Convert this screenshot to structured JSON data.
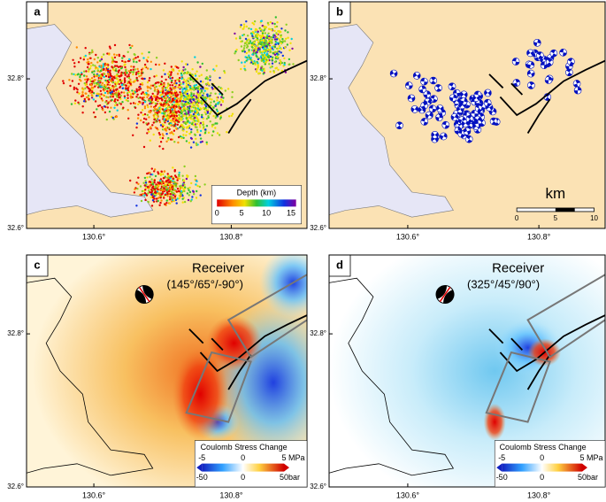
{
  "panels": [
    {
      "label": "a",
      "lon_ticks": [
        "130.6°",
        "130.8°"
      ],
      "lat_ticks": [
        "32.8°",
        "32.6°"
      ],
      "colorbar": {
        "title": "Depth (km)",
        "ticks": [
          0,
          5,
          10,
          15
        ]
      }
    },
    {
      "label": "b",
      "lon_ticks": [
        "130.6°",
        "130.8°"
      ],
      "lat_ticks": [
        "32.8°",
        "32.6°"
      ],
      "scale": {
        "unit": "km",
        "ticks": [
          0,
          5,
          10
        ]
      }
    },
    {
      "label": "c",
      "lon_ticks": [
        "130.6°",
        "130.8°"
      ],
      "lat_ticks": [
        "32.8°",
        "32.6°"
      ],
      "receiver": {
        "title": "Receiver",
        "angles": "(145°/65°/-90°)"
      },
      "colorbar": {
        "title": "Coulomb Stress Change",
        "ticks": [
          -5,
          0,
          5
        ],
        "unit": "MPa",
        "ticks2": [
          -50,
          0,
          50
        ],
        "unit2": "bar"
      }
    },
    {
      "label": "d",
      "lon_ticks": [
        "130.6°",
        "130.8°"
      ],
      "lat_ticks": [
        "32.8°",
        "32.6°"
      ],
      "receiver": {
        "title": "Receiver",
        "angles": "(325°/45°/90°)"
      },
      "colorbar": {
        "title": "Coulomb Stress Change",
        "ticks": [
          -5,
          0,
          5
        ],
        "unit": "MPa",
        "ticks2": [
          -50,
          0,
          50
        ],
        "unit2": "bar"
      }
    }
  ]
}
